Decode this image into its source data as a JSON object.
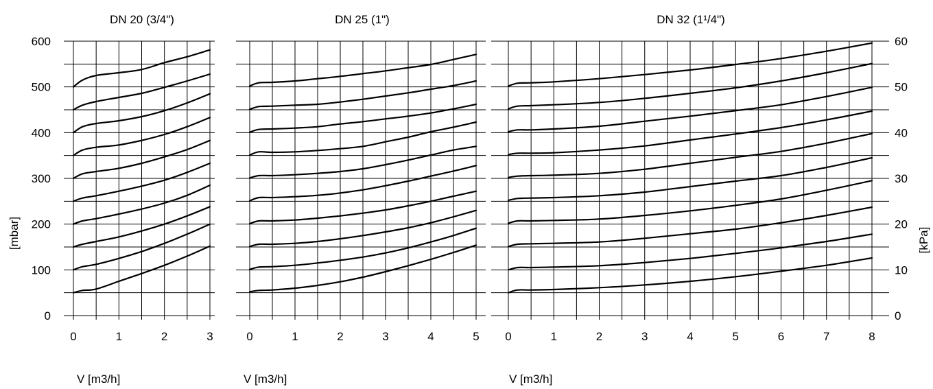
{
  "units": {
    "left": "[mbar]",
    "right": "[kPa]"
  },
  "left_ticks": [
    "0",
    "100",
    "200",
    "300",
    "400",
    "500",
    "600"
  ],
  "right_ticks": [
    "0",
    "10",
    "20",
    "30",
    "40",
    "50",
    "60"
  ],
  "chart_data": [
    {
      "type": "line",
      "title": "DN 20 (3/4\")",
      "xlabel": "V [m3/h]",
      "ylabel": "[mbar]",
      "xlim": [
        0,
        3
      ],
      "ylim": [
        0,
        600
      ],
      "xticks": [
        "0",
        "1",
        "2",
        "3"
      ],
      "series": [
        {
          "x": [
            0,
            0.2,
            0.5,
            1,
            1.5,
            2,
            2.5,
            3
          ],
          "values": [
            50,
            55,
            58,
            75,
            92,
            110,
            130,
            152
          ]
        },
        {
          "x": [
            0,
            0.2,
            0.5,
            1,
            1.5,
            2,
            2.5,
            3
          ],
          "values": [
            100,
            107,
            112,
            125,
            140,
            158,
            178,
            200
          ]
        },
        {
          "x": [
            0,
            0.2,
            0.5,
            1,
            1.5,
            2,
            2.5,
            3
          ],
          "values": [
            150,
            156,
            162,
            172,
            185,
            200,
            218,
            238
          ]
        },
        {
          "x": [
            0,
            0.2,
            0.5,
            1,
            1.5,
            2,
            2.5,
            3
          ],
          "values": [
            200,
            207,
            212,
            222,
            233,
            246,
            263,
            285
          ]
        },
        {
          "x": [
            0,
            0.2,
            0.5,
            1,
            1.5,
            2,
            2.5,
            3
          ],
          "values": [
            250,
            257,
            262,
            272,
            283,
            296,
            313,
            333
          ]
        },
        {
          "x": [
            0,
            0.2,
            0.5,
            1,
            1.5,
            2,
            2.5,
            3
          ],
          "values": [
            300,
            310,
            315,
            322,
            333,
            347,
            363,
            383
          ]
        },
        {
          "x": [
            0,
            0.2,
            0.5,
            1,
            1.5,
            2,
            2.5,
            3
          ],
          "values": [
            350,
            362,
            368,
            373,
            383,
            396,
            413,
            433
          ]
        },
        {
          "x": [
            0,
            0.2,
            0.5,
            1,
            1.5,
            2,
            2.5,
            3
          ],
          "values": [
            400,
            413,
            420,
            426,
            435,
            448,
            465,
            485
          ]
        },
        {
          "x": [
            0,
            0.2,
            0.5,
            1,
            1.5,
            2,
            2.5,
            3
          ],
          "values": [
            450,
            460,
            468,
            477,
            486,
            499,
            513,
            528
          ]
        },
        {
          "x": [
            0,
            0.2,
            0.5,
            1,
            1.5,
            2,
            2.5,
            3
          ],
          "values": [
            500,
            515,
            525,
            531,
            538,
            553,
            566,
            581
          ]
        }
      ]
    },
    {
      "type": "line",
      "title": "DN 25 (1\")",
      "xlabel": "V [m3/h]",
      "xlim": [
        0,
        5
      ],
      "ylim": [
        0,
        600
      ],
      "xticks": [
        "0",
        "1",
        "2",
        "3",
        "4",
        "5"
      ],
      "series": [
        {
          "x": [
            0,
            0.2,
            0.5,
            1,
            1.5,
            2,
            2.5,
            3,
            3.5,
            4,
            4.5,
            5
          ],
          "values": [
            52,
            55,
            56,
            60,
            66,
            74,
            84,
            96,
            109,
            123,
            138,
            154
          ]
        },
        {
          "x": [
            0,
            0.2,
            0.5,
            1,
            1.5,
            2,
            2.5,
            3,
            3.5,
            4,
            4.5,
            5
          ],
          "values": [
            101,
            106,
            107,
            110,
            115,
            121,
            128,
            137,
            148,
            161,
            175,
            191
          ]
        },
        {
          "x": [
            0,
            0.2,
            0.5,
            1,
            1.5,
            2,
            2.5,
            3,
            3.5,
            4,
            4.5,
            5
          ],
          "values": [
            151,
            156,
            156,
            158,
            162,
            168,
            175,
            183,
            192,
            203,
            216,
            230
          ]
        },
        {
          "x": [
            0,
            0.2,
            0.5,
            1,
            1.5,
            2,
            2.5,
            3,
            3.5,
            4,
            4.5,
            5
          ],
          "values": [
            201,
            207,
            207,
            209,
            213,
            218,
            224,
            231,
            240,
            250,
            261,
            272
          ]
        },
        {
          "x": [
            0,
            0.2,
            0.5,
            1,
            1.5,
            2,
            2.5,
            3,
            3.5,
            4,
            4.5,
            5
          ],
          "values": [
            251,
            258,
            258,
            260,
            263,
            268,
            275,
            284,
            294,
            305,
            316,
            328
          ]
        },
        {
          "x": [
            0,
            0.2,
            0.5,
            1,
            1.5,
            2,
            2.5,
            3,
            3.5,
            4,
            4.5,
            5
          ],
          "values": [
            301,
            306,
            306,
            308,
            311,
            315,
            321,
            330,
            340,
            351,
            362,
            370
          ]
        },
        {
          "x": [
            0,
            0.2,
            0.5,
            1,
            1.5,
            2,
            2.5,
            3,
            3.5,
            4,
            4.5,
            5
          ],
          "values": [
            351,
            358,
            357,
            358,
            361,
            365,
            370,
            380,
            390,
            402,
            412,
            423
          ]
        },
        {
          "x": [
            0,
            0.2,
            0.5,
            1,
            1.5,
            2,
            2.5,
            3,
            3.5,
            4,
            4.5,
            5
          ],
          "values": [
            401,
            407,
            408,
            410,
            413,
            419,
            424,
            430,
            436,
            443,
            452,
            462
          ]
        },
        {
          "x": [
            0,
            0.2,
            0.5,
            1,
            1.5,
            2,
            2.5,
            3,
            3.5,
            4,
            4.5,
            5
          ],
          "values": [
            451,
            457,
            458,
            460,
            462,
            467,
            473,
            480,
            487,
            495,
            503,
            513
          ]
        },
        {
          "x": [
            0,
            0.2,
            0.5,
            1,
            1.5,
            2,
            2.5,
            3,
            3.5,
            4,
            4.5,
            5
          ],
          "values": [
            502,
            509,
            510,
            513,
            518,
            523,
            529,
            535,
            542,
            549,
            560,
            571
          ]
        }
      ]
    },
    {
      "type": "line",
      "title": "DN 32 (1¹/4\")",
      "xlabel": "V [m3/h]",
      "ylabel": "[kPa]",
      "xlim": [
        0,
        8
      ],
      "ylim": [
        0,
        60
      ],
      "xticks": [
        "0",
        "1",
        "2",
        "3",
        "4",
        "5",
        "6",
        "7",
        "8"
      ],
      "series": [
        {
          "x": [
            0,
            0.2,
            0.5,
            1,
            2,
            3,
            4,
            5,
            6,
            7,
            8
          ],
          "values": [
            5.0,
            5.6,
            5.6,
            5.7,
            6.1,
            6.7,
            7.5,
            8.5,
            9.7,
            11.0,
            12.6
          ]
        },
        {
          "x": [
            0,
            0.2,
            0.5,
            1,
            2,
            3,
            4,
            5,
            6,
            7,
            8
          ],
          "values": [
            10.0,
            10.5,
            10.5,
            10.6,
            10.9,
            11.6,
            12.5,
            13.6,
            14.8,
            16.2,
            17.8
          ]
        },
        {
          "x": [
            0,
            0.2,
            0.5,
            1,
            2,
            3,
            4,
            5,
            6,
            7,
            8
          ],
          "values": [
            15.1,
            15.6,
            15.7,
            15.8,
            16.1,
            16.9,
            17.9,
            18.9,
            20.3,
            21.9,
            23.7
          ]
        },
        {
          "x": [
            0,
            0.2,
            0.5,
            1,
            2,
            3,
            4,
            5,
            6,
            7,
            8
          ],
          "values": [
            20.2,
            20.7,
            20.7,
            20.8,
            21.1,
            21.9,
            22.9,
            24.1,
            25.5,
            27.4,
            29.5
          ]
        },
        {
          "x": [
            0,
            0.2,
            0.5,
            1,
            2,
            3,
            4,
            5,
            6,
            7,
            8
          ],
          "values": [
            25.2,
            25.6,
            25.7,
            25.8,
            26.2,
            27.0,
            28.2,
            29.4,
            30.6,
            32.4,
            34.5
          ]
        },
        {
          "x": [
            0,
            0.2,
            0.5,
            1,
            2,
            3,
            4,
            5,
            6,
            7,
            8
          ],
          "values": [
            30.2,
            30.5,
            30.6,
            30.7,
            31.1,
            32.0,
            33.3,
            34.6,
            35.9,
            37.7,
            39.8
          ]
        },
        {
          "x": [
            0,
            0.2,
            0.5,
            1,
            2,
            3,
            4,
            5,
            6,
            7,
            8
          ],
          "values": [
            35.2,
            35.5,
            35.5,
            35.6,
            36.2,
            37.1,
            38.4,
            39.7,
            41.1,
            42.8,
            44.7
          ]
        },
        {
          "x": [
            0,
            0.2,
            0.5,
            1,
            2,
            3,
            4,
            5,
            6,
            7,
            8
          ],
          "values": [
            40.2,
            40.6,
            40.6,
            40.8,
            41.4,
            42.5,
            43.6,
            44.8,
            46.1,
            47.9,
            49.9
          ]
        },
        {
          "x": [
            0,
            0.2,
            0.5,
            1,
            2,
            3,
            4,
            5,
            6,
            7,
            8
          ],
          "values": [
            45.2,
            45.8,
            45.9,
            46.1,
            46.6,
            47.5,
            48.6,
            49.8,
            51.3,
            53.1,
            55.1
          ]
        },
        {
          "x": [
            0,
            0.2,
            0.5,
            1,
            2,
            3,
            4,
            5,
            6,
            7,
            8
          ],
          "values": [
            50.2,
            50.8,
            50.9,
            51.1,
            51.8,
            52.7,
            53.7,
            54.9,
            56.2,
            57.8,
            59.6
          ]
        }
      ]
    }
  ]
}
